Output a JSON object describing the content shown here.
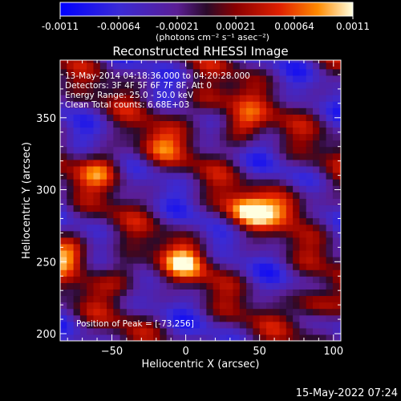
{
  "colorbar": {
    "tick_labels": [
      "-0.0011",
      "-0.00064",
      "-0.00021",
      "0.00021",
      "0.00064",
      "0.0011"
    ],
    "units_label": "(photons cm⁻² s⁻¹ asec⁻²)"
  },
  "chart_data": {
    "type": "heatmap",
    "title": "Reconstructed RHESSI Image",
    "xlabel": "Heliocentric X (arcsec)",
    "ylabel": "Heliocentric Y (arcsec)",
    "xlim": [
      -85,
      105
    ],
    "ylim": [
      195,
      390
    ],
    "x_ticks": [
      -50,
      0,
      50,
      100
    ],
    "y_ticks": [
      200,
      250,
      300,
      350
    ],
    "x_tick_labels": [
      "−50",
      "0",
      "50",
      "100"
    ],
    "y_tick_labels": [
      "200",
      "250",
      "300",
      "350"
    ],
    "color_range": [
      -0.0011,
      0.0011
    ],
    "annotations": [
      "13-May-2014 04:18:36.000 to 04:20:28.000",
      "Detectors: 3F 4F 5F 6F 7F 8F, Att 0",
      "Energy Range: 25.0 - 50.0 keV",
      "Clean     Total counts: 6.68E+03"
    ],
    "peak_label": "Position of Peak = [-73,256]",
    "peak_position": [
      -73,
      256
    ],
    "bright_sources": [
      {
        "x": -78,
        "y": 256,
        "v": 0.0011
      },
      {
        "x": 40,
        "y": 285,
        "v": 0.001
      },
      {
        "x": 88,
        "y": 220,
        "v": 0.001
      },
      {
        "x": 38,
        "y": 345,
        "v": 0.00085
      },
      {
        "x": -55,
        "y": 315,
        "v": 0.0008
      },
      {
        "x": 0,
        "y": 250,
        "v": 0.0008
      },
      {
        "x": 70,
        "y": 290,
        "v": 0.0009
      },
      {
        "x": -40,
        "y": 240,
        "v": 0.0007
      },
      {
        "x": 15,
        "y": 360,
        "v": 0.0007
      },
      {
        "x": -20,
        "y": 330,
        "v": 0.0006
      }
    ]
  },
  "footer": {
    "timestamp": "15-May-2022 07:24"
  }
}
